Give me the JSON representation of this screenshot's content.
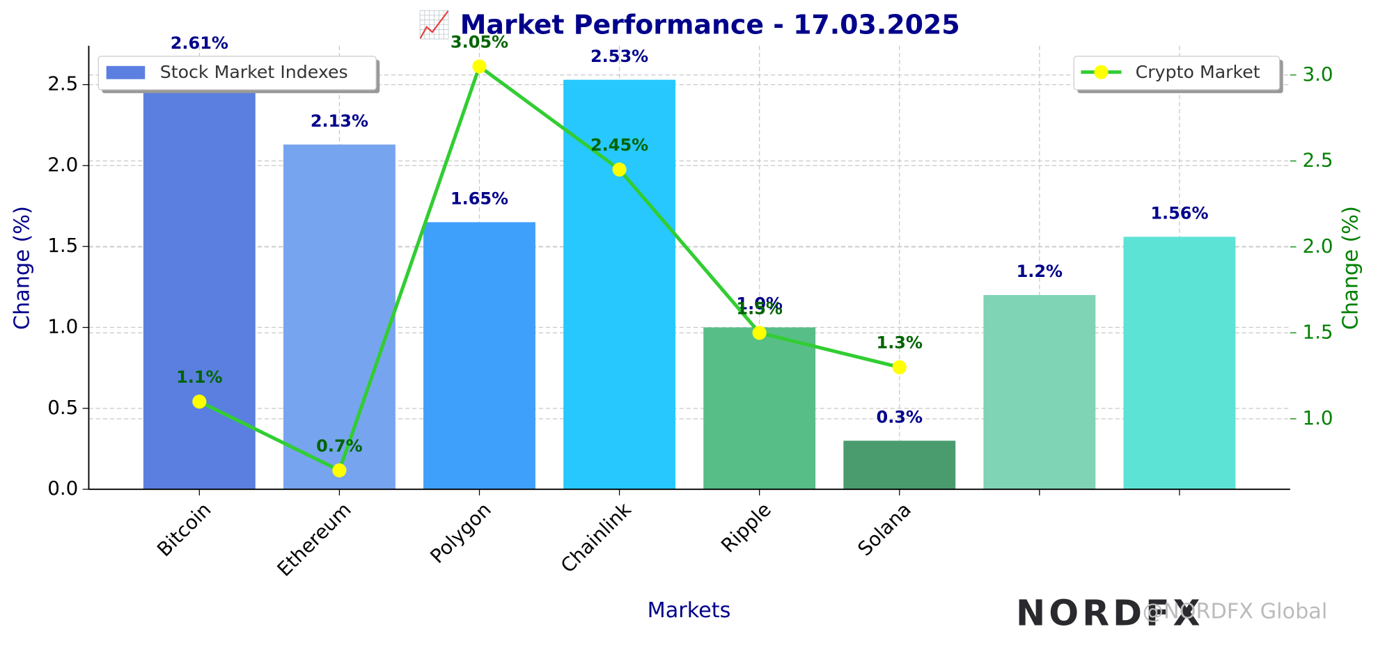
{
  "chart_data": {
    "type": "bar",
    "title": "📈 Market Performance - 17.03.2025",
    "xlabel": "Markets",
    "ylabel": "Change (%)",
    "y2label": "Change (%)",
    "categories": [
      "Bitcoin",
      "Ethereum",
      "Polygon",
      "Chainlink",
      "Ripple",
      "Solana",
      null,
      null
    ],
    "series": [
      {
        "name": "Stock Market Indexes",
        "type": "bar",
        "colors": [
          "#5b7fe0",
          "#77a4ef",
          "#3fa0fb",
          "#27c8fd",
          "#58be88",
          "#4a9c6f",
          "#7ed4b5",
          "#5de3d5"
        ],
        "values": [
          2.61,
          2.13,
          1.65,
          2.53,
          1.0,
          0.3,
          1.2,
          1.56
        ],
        "value_labels": [
          "2.61%",
          "2.13%",
          "1.65%",
          "2.53%",
          "1.0%",
          "0.3%",
          "1.2%",
          "1.56%"
        ]
      },
      {
        "name": "Crypto Market",
        "type": "line",
        "axis": "y2",
        "color": "#32cd32",
        "marker_color": "#ffff00",
        "values": [
          1.1,
          0.7,
          3.05,
          2.45,
          1.5,
          1.3,
          null,
          null
        ],
        "value_labels": [
          "1.1%",
          "0.7%",
          "3.05%",
          "2.45%",
          "1.5%",
          "1.3%",
          null,
          null
        ]
      }
    ],
    "ylim": [
      0,
      2.74
    ],
    "yticks": [
      {
        "value": 0,
        "label": "0.0"
      },
      0.5,
      {
        "value": 1,
        "label": "1.0"
      },
      1.5,
      {
        "value": 2,
        "label": "2.0"
      },
      2.5
    ],
    "y2lim": [
      0.59,
      3.17
    ],
    "y2ticks": [
      {
        "value": 1,
        "label": "1.0"
      },
      1.5,
      {
        "value": 2,
        "label": "2.0"
      },
      2.5,
      {
        "value": 3,
        "label": "3.0"
      }
    ],
    "grid": true,
    "legend": "upper left",
    "legend2": "upper right",
    "watermark": {
      "logo": "NORDFX",
      "handle": "@NORDFX Global"
    }
  }
}
